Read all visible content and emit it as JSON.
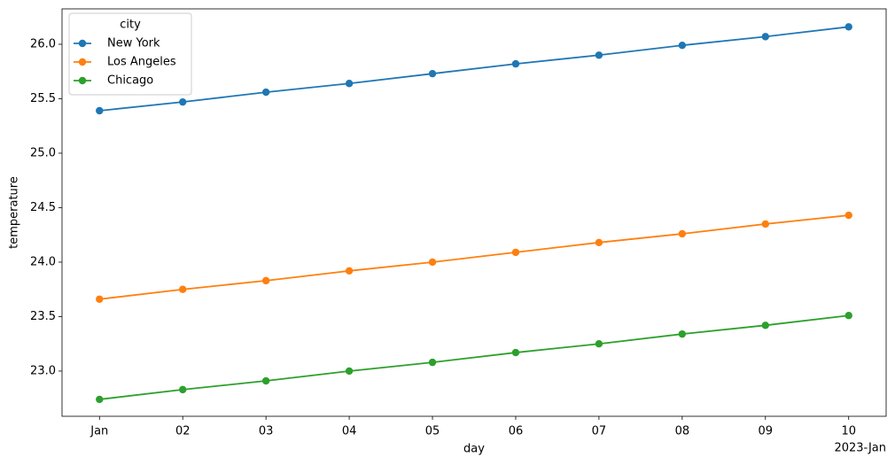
{
  "chart_data": {
    "type": "line",
    "x_label": "day",
    "y_label": "temperature",
    "x_offset_label": "2023-Jan",
    "legend_title": "city",
    "legend_position": "upper left",
    "grid": false,
    "x": [
      "2023-01-01",
      "2023-01-02",
      "2023-01-03",
      "2023-01-04",
      "2023-01-05",
      "2023-01-06",
      "2023-01-07",
      "2023-01-08",
      "2023-01-09",
      "2023-01-10"
    ],
    "series": [
      {
        "name": "New York",
        "color": "#1f77b4",
        "values": [
          25.39,
          25.47,
          25.56,
          25.64,
          25.73,
          25.82,
          25.9,
          25.99,
          26.07,
          26.16
        ]
      },
      {
        "name": "Los Angeles",
        "color": "#ff7f0e",
        "values": [
          23.66,
          23.75,
          23.83,
          23.92,
          24.0,
          24.09,
          24.18,
          24.26,
          24.35,
          24.43
        ]
      },
      {
        "name": "Chicago",
        "color": "#2ca02c",
        "values": [
          22.74,
          22.83,
          22.91,
          23.0,
          23.08,
          23.17,
          23.25,
          23.34,
          23.42,
          23.51
        ]
      }
    ],
    "xlim": [
      "2022-12-31T13:12:00Z",
      "2023-01-10T10:48:00Z"
    ],
    "xticks": [
      {
        "value": "2023-01-01",
        "label": "Jan"
      },
      {
        "value": "2023-01-02",
        "label": "02"
      },
      {
        "value": "2023-01-03",
        "label": "03"
      },
      {
        "value": "2023-01-04",
        "label": "04"
      },
      {
        "value": "2023-01-05",
        "label": "05"
      },
      {
        "value": "2023-01-06",
        "label": "06"
      },
      {
        "value": "2023-01-07",
        "label": "07"
      },
      {
        "value": "2023-01-08",
        "label": "08"
      },
      {
        "value": "2023-01-09",
        "label": "09"
      },
      {
        "value": "2023-01-10",
        "label": "10"
      }
    ],
    "ylim": [
      22.585,
      26.325
    ],
    "yticks": [
      {
        "value": 23,
        "label": "23.0"
      },
      {
        "value": 23.5,
        "label": "23.5"
      },
      {
        "value": 24,
        "label": "24.0"
      },
      {
        "value": 24.5,
        "label": "24.5"
      },
      {
        "value": 25,
        "label": "25.0"
      },
      {
        "value": 25.5,
        "label": "25.5"
      },
      {
        "value": 26,
        "label": "26.0"
      }
    ]
  }
}
